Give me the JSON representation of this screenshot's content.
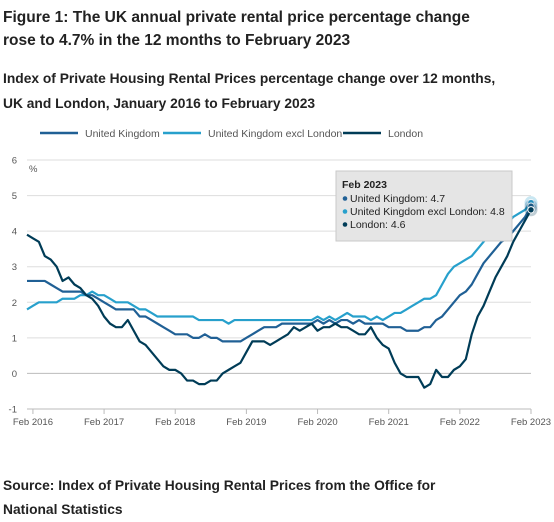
{
  "figure": {
    "title_line1": "Figure 1: The UK annual private rental price percentage change",
    "title_line2": "rose to 4.7% in the 12 months to February 2023"
  },
  "source": {
    "line1": "Source: Index of Private Housing Rental Prices from the Office for",
    "line2": "National Statistics"
  },
  "tooltip": {
    "title": "Feb 2023",
    "items": [
      {
        "label": "United Kingdom",
        "value": "4.7",
        "color": "#206095"
      },
      {
        "label": "United Kingdom excl London",
        "value": "4.8",
        "color": "#27a0cc"
      },
      {
        "label": "London",
        "value": "4.6",
        "color": "#003c57"
      }
    ]
  },
  "chart_data": {
    "type": "line",
    "title_line1": "Index of Private Housing Rental Prices percentage change over 12 months,",
    "title_line2": "UK and London, January 2016 to February 2023",
    "ylabel": "%",
    "ylim": [
      -1,
      6
    ],
    "yticks": [
      "-1",
      "0",
      "1",
      "2",
      "3",
      "4",
      "5",
      "6"
    ],
    "xticks": [
      {
        "label": "Feb 2016",
        "index": 1
      },
      {
        "label": "Feb 2017",
        "index": 13
      },
      {
        "label": "Feb 2018",
        "index": 25
      },
      {
        "label": "Feb 2019",
        "index": 37
      },
      {
        "label": "Feb 2020",
        "index": 49
      },
      {
        "label": "Feb 2021",
        "index": 61
      },
      {
        "label": "Feb 2022",
        "index": 73
      },
      {
        "label": "Feb 2023",
        "index": 85
      }
    ],
    "x_start": "Jan 2016",
    "x_end": "Feb 2023",
    "grid": true,
    "legend_position": "top",
    "series": [
      {
        "name": "United Kingdom",
        "color": "#206095",
        "values": [
          2.6,
          2.6,
          2.6,
          2.6,
          2.5,
          2.4,
          2.3,
          2.3,
          2.3,
          2.3,
          2.2,
          2.2,
          2.1,
          2.0,
          1.9,
          1.8,
          1.8,
          1.8,
          1.8,
          1.6,
          1.6,
          1.5,
          1.4,
          1.3,
          1.2,
          1.1,
          1.1,
          1.1,
          1.0,
          1.0,
          1.1,
          1.0,
          1.0,
          0.9,
          0.9,
          0.9,
          0.9,
          1.0,
          1.1,
          1.2,
          1.3,
          1.3,
          1.3,
          1.4,
          1.4,
          1.4,
          1.4,
          1.4,
          1.4,
          1.5,
          1.4,
          1.5,
          1.4,
          1.5,
          1.5,
          1.4,
          1.5,
          1.4,
          1.4,
          1.4,
          1.4,
          1.3,
          1.3,
          1.3,
          1.2,
          1.2,
          1.2,
          1.3,
          1.3,
          1.5,
          1.6,
          1.8,
          2.0,
          2.2,
          2.3,
          2.5,
          2.8,
          3.1,
          3.3,
          3.5,
          3.7,
          3.8,
          4.0,
          4.2,
          4.4,
          4.7
        ]
      },
      {
        "name": "United Kingdom excl London",
        "color": "#27a0cc",
        "values": [
          1.8,
          1.9,
          2.0,
          2.0,
          2.0,
          2.0,
          2.1,
          2.1,
          2.1,
          2.2,
          2.2,
          2.3,
          2.2,
          2.2,
          2.1,
          2.0,
          2.0,
          2.0,
          1.9,
          1.8,
          1.8,
          1.7,
          1.6,
          1.6,
          1.6,
          1.6,
          1.6,
          1.6,
          1.6,
          1.5,
          1.5,
          1.5,
          1.5,
          1.5,
          1.4,
          1.5,
          1.5,
          1.5,
          1.5,
          1.5,
          1.5,
          1.5,
          1.5,
          1.5,
          1.5,
          1.5,
          1.5,
          1.5,
          1.5,
          1.6,
          1.5,
          1.6,
          1.5,
          1.6,
          1.7,
          1.6,
          1.6,
          1.6,
          1.5,
          1.6,
          1.5,
          1.6,
          1.7,
          1.7,
          1.8,
          1.9,
          2.0,
          2.1,
          2.1,
          2.2,
          2.5,
          2.8,
          3.0,
          3.1,
          3.2,
          3.3,
          3.5,
          3.7,
          3.9,
          4.0,
          4.1,
          4.2,
          4.4,
          4.5,
          4.6,
          4.8
        ]
      },
      {
        "name": "London",
        "color": "#003c57",
        "values": [
          3.9,
          3.8,
          3.7,
          3.3,
          3.2,
          3.0,
          2.6,
          2.7,
          2.5,
          2.4,
          2.2,
          2.1,
          1.9,
          1.6,
          1.4,
          1.3,
          1.3,
          1.5,
          1.2,
          0.9,
          0.8,
          0.6,
          0.4,
          0.2,
          0.1,
          0.1,
          0.0,
          -0.2,
          -0.2,
          -0.3,
          -0.3,
          -0.2,
          -0.2,
          0.0,
          0.1,
          0.2,
          0.3,
          0.6,
          0.9,
          0.9,
          0.9,
          0.8,
          0.9,
          1.0,
          1.1,
          1.3,
          1.2,
          1.3,
          1.4,
          1.2,
          1.3,
          1.3,
          1.4,
          1.3,
          1.3,
          1.2,
          1.1,
          1.1,
          1.3,
          1.0,
          0.8,
          0.7,
          0.3,
          0.0,
          -0.1,
          -0.1,
          -0.1,
          -0.4,
          -0.3,
          0.1,
          -0.1,
          -0.1,
          0.1,
          0.2,
          0.4,
          1.1,
          1.6,
          1.9,
          2.3,
          2.7,
          3.0,
          3.3,
          3.7,
          4.0,
          4.3,
          4.6
        ]
      }
    ]
  }
}
